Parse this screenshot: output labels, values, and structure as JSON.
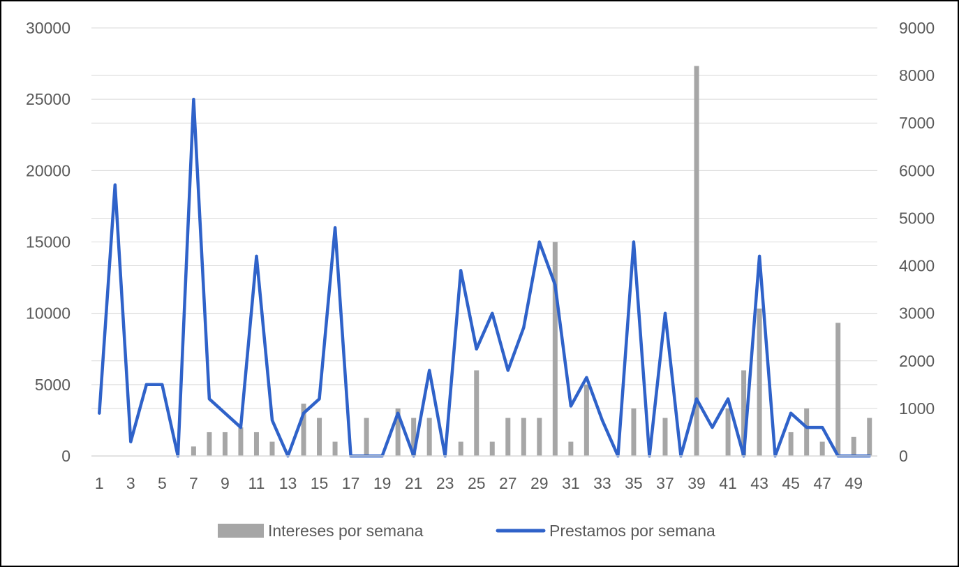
{
  "chart_data": {
    "type": "bar+line",
    "title": "",
    "xlabel": "",
    "ylabel": "",
    "ylim_left": [
      0,
      30000
    ],
    "ylim_right": [
      0,
      9000
    ],
    "left_ticks": [
      "0",
      "5000",
      "10000",
      "15000",
      "20000",
      "25000",
      "30000"
    ],
    "right_ticks": [
      "0",
      "1000",
      "2000",
      "3000",
      "4000",
      "5000",
      "6000",
      "7000",
      "8000",
      "9000"
    ],
    "x_tick_labels": [
      "1",
      "3",
      "5",
      "7",
      "9",
      "11",
      "13",
      "15",
      "17",
      "19",
      "21",
      "23",
      "25",
      "27",
      "29",
      "31",
      "33",
      "35",
      "37",
      "39",
      "41",
      "43",
      "45",
      "47",
      "49"
    ],
    "categories": [
      1,
      2,
      3,
      4,
      5,
      6,
      7,
      8,
      9,
      10,
      11,
      12,
      13,
      14,
      15,
      16,
      17,
      18,
      19,
      20,
      21,
      22,
      23,
      24,
      25,
      26,
      27,
      28,
      29,
      30,
      31,
      32,
      33,
      34,
      35,
      36,
      37,
      38,
      39,
      40,
      41,
      42,
      43,
      44,
      45,
      46,
      47,
      48,
      49,
      50
    ],
    "grid": true,
    "legend_position": "bottom",
    "colors": {
      "bars": "#a6a6a6",
      "line": "#2f62c9",
      "grid": "#d9d9d9",
      "text": "#595959"
    },
    "series": [
      {
        "name": "Intereses por semana",
        "type": "bar",
        "axis": "right",
        "values": [
          0,
          0,
          0,
          0,
          0,
          0,
          200,
          500,
          500,
          600,
          500,
          300,
          0,
          1100,
          800,
          300,
          0,
          800,
          0,
          1000,
          800,
          800,
          0,
          300,
          1800,
          300,
          800,
          800,
          800,
          4500,
          300,
          1500,
          0,
          0,
          1000,
          0,
          800,
          0,
          8200,
          0,
          1000,
          1800,
          3100,
          0,
          500,
          1000,
          300,
          2800,
          400,
          800
        ]
      },
      {
        "name": "Prestamos por semana",
        "type": "line",
        "axis": "left",
        "values": [
          3000,
          19000,
          1000,
          5000,
          5000,
          0,
          25000,
          4000,
          3000,
          2000,
          14000,
          2500,
          0,
          3000,
          4000,
          16000,
          0,
          0,
          0,
          3000,
          0,
          6000,
          0,
          13000,
          7500,
          10000,
          6000,
          9000,
          15000,
          12000,
          3500,
          5500,
          2500,
          0,
          15000,
          0,
          10000,
          0,
          4000,
          2000,
          4000,
          0,
          14000,
          0,
          3000,
          2000,
          2000,
          0,
          0,
          0
        ]
      }
    ]
  }
}
